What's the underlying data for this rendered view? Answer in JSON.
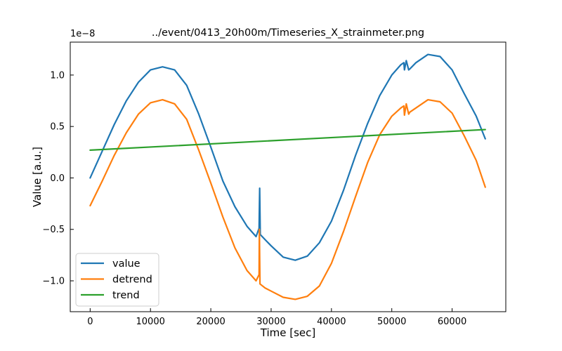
{
  "chart_data": {
    "type": "line",
    "title": "../event/0413_20h00m/Timeseries_X_strainmeter.png",
    "xlabel": "Time [sec]",
    "ylabel": "Value [a.u.]",
    "offset_text": "1e−8",
    "xlim": [
      -3300,
      68900
    ],
    "ylim": [
      -1.3,
      1.32
    ],
    "xticks": [
      0,
      10000,
      20000,
      30000,
      40000,
      50000,
      60000
    ],
    "xtick_labels": [
      "0",
      "10000",
      "20000",
      "30000",
      "40000",
      "50000",
      "60000"
    ],
    "yticks": [
      -1.0,
      -0.5,
      0.0,
      0.5,
      1.0
    ],
    "ytick_labels": [
      "−1.0",
      "−0.5",
      "0.0",
      "0.5",
      "1.0"
    ],
    "legend_position": "lower-left",
    "grid": false,
    "series": [
      {
        "name": "value",
        "color": "#1f77b4",
        "x": [
          0,
          2000,
          4000,
          6000,
          8000,
          10000,
          12000,
          14000,
          16000,
          18000,
          20000,
          22000,
          24000,
          26000,
          27500,
          28000,
          28100,
          28200,
          29000,
          30000,
          32000,
          34000,
          36000,
          38000,
          40000,
          42000,
          44000,
          46000,
          48000,
          50000,
          51500,
          52000,
          52100,
          52400,
          52800,
          53000,
          54000,
          56000,
          58000,
          60000,
          62000,
          64000,
          65500
        ],
        "y": [
          0.0,
          0.26,
          0.52,
          0.75,
          0.93,
          1.05,
          1.08,
          1.05,
          0.9,
          0.62,
          0.3,
          -0.03,
          -0.28,
          -0.47,
          -0.57,
          -0.49,
          -0.1,
          -0.55,
          -0.6,
          -0.66,
          -0.77,
          -0.8,
          -0.76,
          -0.63,
          -0.42,
          -0.12,
          0.22,
          0.53,
          0.8,
          1.0,
          1.1,
          1.12,
          1.05,
          1.14,
          1.05,
          1.06,
          1.12,
          1.2,
          1.18,
          1.05,
          0.82,
          0.6,
          0.38
        ]
      },
      {
        "name": "detrend",
        "color": "#ff7f0e",
        "x": [
          0,
          2000,
          4000,
          6000,
          8000,
          10000,
          12000,
          14000,
          16000,
          18000,
          20000,
          22000,
          24000,
          26000,
          27500,
          28000,
          28050,
          28150,
          29000,
          30000,
          32000,
          34000,
          36000,
          38000,
          40000,
          42000,
          44000,
          46000,
          48000,
          50000,
          51500,
          52000,
          52100,
          52400,
          52800,
          53000,
          54000,
          56000,
          58000,
          60000,
          62000,
          64000,
          65500
        ],
        "y": [
          -0.27,
          -0.03,
          0.22,
          0.44,
          0.62,
          0.73,
          0.76,
          0.72,
          0.57,
          0.27,
          -0.05,
          -0.38,
          -0.68,
          -0.9,
          -1.0,
          -0.94,
          -0.5,
          -1.03,
          -1.07,
          -1.1,
          -1.16,
          -1.18,
          -1.15,
          -1.05,
          -0.83,
          -0.52,
          -0.18,
          0.15,
          0.42,
          0.6,
          0.68,
          0.7,
          0.61,
          0.72,
          0.62,
          0.64,
          0.68,
          0.76,
          0.74,
          0.63,
          0.41,
          0.17,
          -0.09
        ]
      },
      {
        "name": "trend",
        "color": "#2ca02c",
        "x": [
          0,
          65500
        ],
        "y": [
          0.27,
          0.47
        ]
      }
    ]
  }
}
